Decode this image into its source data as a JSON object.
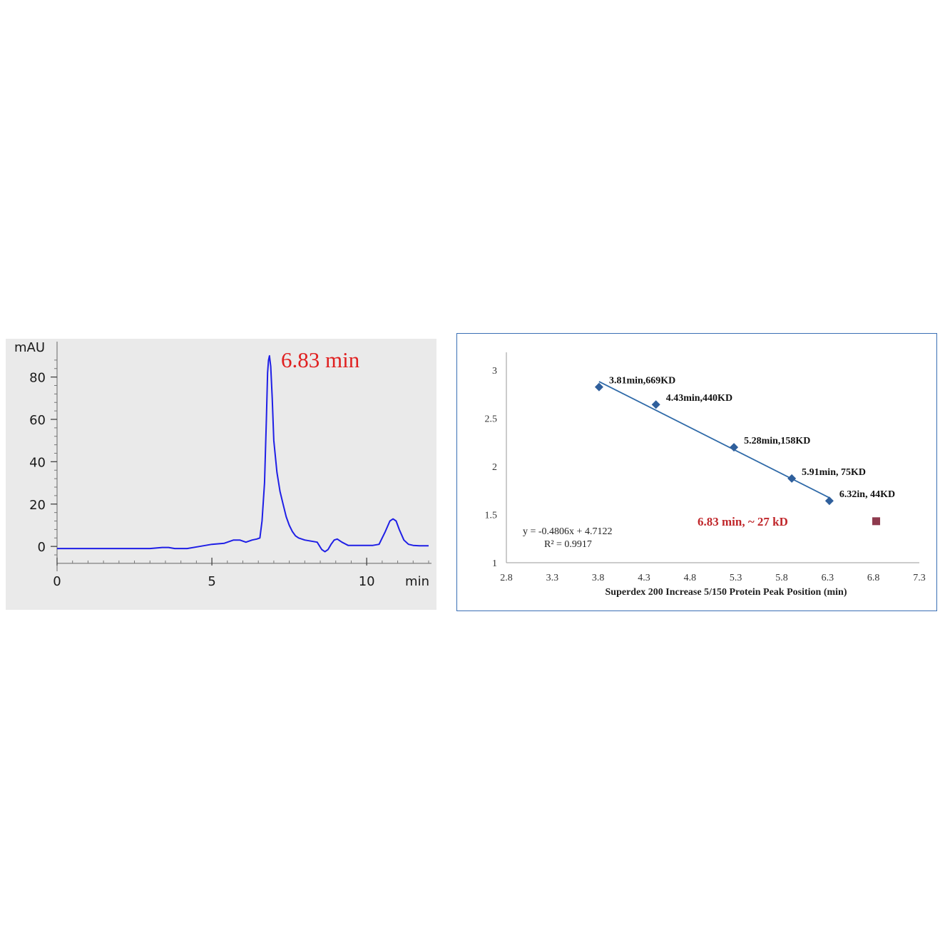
{
  "chart_data": [
    {
      "type": "line",
      "ylabel": "mAU",
      "xlabel": "min",
      "x_ticks": [
        "0",
        "5",
        "10"
      ],
      "y_ticks": [
        "0",
        "20",
        "40",
        "60",
        "80"
      ],
      "xlim": [
        0,
        12
      ],
      "ylim": [
        -5,
        92
      ],
      "grid": false,
      "line_color": "#1f1fe6",
      "annotation": {
        "text": "6.83 min",
        "color": "#e02020"
      },
      "series": [
        {
          "x": [
            0,
            1,
            2,
            3,
            3.4,
            3.6,
            3.8,
            4.2,
            4.6,
            5.0,
            5.4,
            5.7,
            5.9,
            6.1,
            6.3,
            6.45,
            6.55,
            6.62,
            6.7,
            6.76,
            6.8,
            6.83,
            6.86,
            6.9,
            6.95,
            7.0,
            7.1,
            7.2,
            7.3,
            7.4,
            7.5,
            7.6,
            7.7,
            7.8,
            8.0,
            8.2,
            8.4,
            8.55,
            8.65,
            8.75,
            8.85,
            8.95,
            9.05,
            9.2,
            9.4,
            9.6,
            9.8,
            10.0,
            10.2,
            10.4,
            10.6,
            10.75,
            10.85,
            10.95,
            11.05,
            11.2,
            11.35,
            11.5,
            11.7,
            11.9,
            12.0
          ],
          "y": [
            -1,
            -1,
            -1,
            -1,
            -0.5,
            -0.5,
            -1,
            -1,
            0,
            1,
            1.5,
            3,
            3,
            2,
            3,
            3.5,
            4,
            12,
            30,
            60,
            82,
            88,
            90,
            85,
            70,
            50,
            35,
            26,
            20,
            14,
            10,
            7,
            5,
            4,
            3,
            2.5,
            2,
            -1.5,
            -2.5,
            -1.5,
            1,
            3,
            3.5,
            2,
            0.5,
            0.5,
            0.5,
            0.5,
            0.5,
            1,
            7,
            12,
            13,
            12,
            8,
            3,
            1,
            0.5,
            0.3,
            0.3,
            0.3
          ]
        }
      ]
    },
    {
      "type": "scatter",
      "title": "",
      "xlabel": "Superdex 200 Increase 5/150  Protein Peak Position (min)",
      "ylabel": "",
      "xlim": [
        2.8,
        7.3
      ],
      "ylim": [
        1,
        3
      ],
      "x_ticks": [
        "2.8",
        "3.3",
        "3.8",
        "4.3",
        "4.8",
        "5.3",
        "5.8",
        "6.3",
        "6.8",
        "7.3"
      ],
      "y_ticks": [
        "1",
        "1.5",
        "2",
        "2.5",
        "3"
      ],
      "grid": false,
      "series": [
        {
          "marker": "diamond",
          "color": "#2f5f9c",
          "points": [
            {
              "x": 3.81,
              "y": 2.825,
              "label": "3.81min,669KD"
            },
            {
              "x": 4.43,
              "y": 2.643,
              "label": "4.43min,440KD"
            },
            {
              "x": 5.28,
              "y": 2.199,
              "label": "5.28min,158KD"
            },
            {
              "x": 5.91,
              "y": 1.875,
              "label": "5.91min, 75KD"
            },
            {
              "x": 6.32,
              "y": 1.643,
              "label": "6.32in, 44KD"
            }
          ]
        },
        {
          "marker": "square",
          "color": "#8e3a4e",
          "points": [
            {
              "x": 6.83,
              "y": 1.431,
              "label": ""
            }
          ]
        }
      ],
      "trendline": {
        "slope": -0.4806,
        "intercept": 4.7122,
        "x_range": [
          3.81,
          6.32
        ],
        "color": "#2f6aa8",
        "equation": "y = -0.4806x + 4.7122",
        "r2": "R² = 0.9917"
      },
      "annotation": {
        "text": "6.83 min, ~ 27 kD",
        "color": "#c0282c"
      }
    }
  ]
}
